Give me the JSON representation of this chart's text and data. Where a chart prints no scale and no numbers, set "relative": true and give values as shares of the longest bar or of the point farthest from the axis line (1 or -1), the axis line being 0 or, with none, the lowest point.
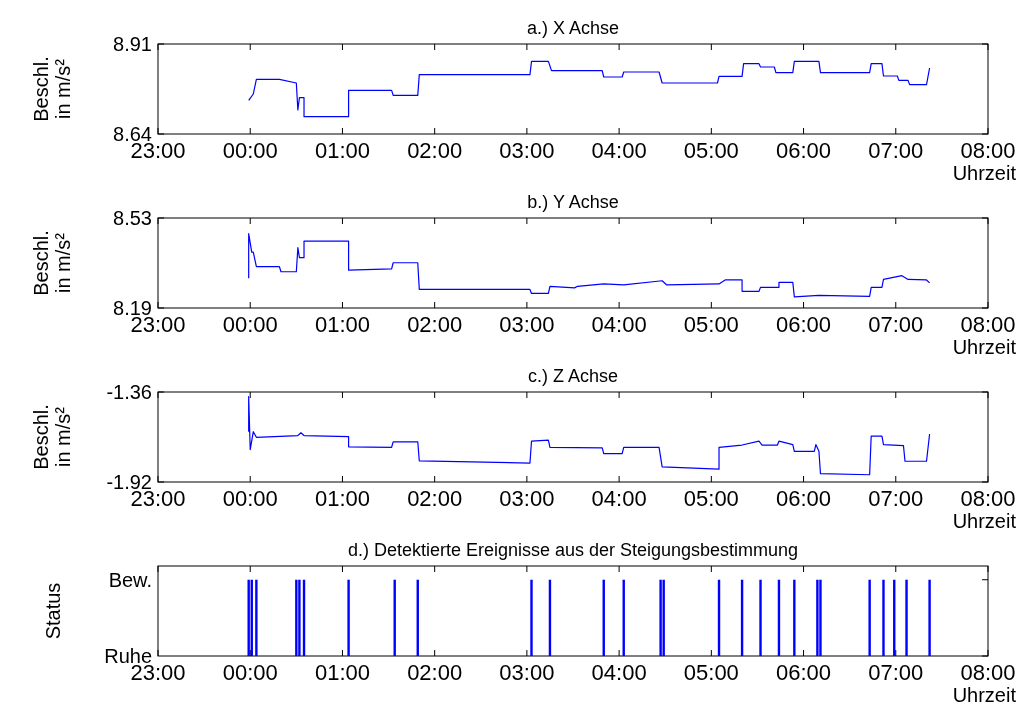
{
  "chart_data": [
    {
      "type": "line",
      "title": "a.) X Achse",
      "xlabel": "Uhrzeit",
      "ylabel": "Beschl. in m/s²",
      "xlim": [
        "2000-01-01T23:00",
        "2000-01-02T08:00"
      ],
      "ylim": [
        8.64,
        8.91
      ],
      "yticks": [
        8.64,
        8.91
      ],
      "xticks": [
        {
          "value": "2000-01-01T23:00",
          "label": "23:00"
        },
        {
          "value": "2000-01-02T00:00",
          "label": "00:00"
        },
        {
          "value": "2000-01-02T01:00",
          "label": "01:00"
        },
        {
          "value": "2000-01-02T02:00",
          "label": "02:00"
        },
        {
          "value": "2000-01-02T03:00",
          "label": "03:00"
        },
        {
          "value": "2000-01-02T04:00",
          "label": "04:00"
        },
        {
          "value": "2000-01-02T05:00",
          "label": "05:00"
        },
        {
          "value": "2000-01-02T06:00",
          "label": "06:00"
        },
        {
          "value": "2000-01-02T07:00",
          "label": "07:00"
        },
        {
          "value": "2000-01-02T08:00",
          "label": "08:00"
        }
      ],
      "series": [
        {
          "color": "#0000ff",
          "x": [
            "2000-01-01T23:59",
            "2000-01-02T00:02",
            "2000-01-02T00:04",
            "2000-01-02T00:19",
            "2000-01-02T00:30",
            "2000-01-02T00:31",
            "2000-01-02T00:32",
            "2000-01-02T00:35",
            "2000-01-02T00:35",
            "2000-01-02T01:04",
            "2000-01-02T01:04",
            "2000-01-02T01:32",
            "2000-01-02T01:33",
            "2000-01-02T01:49",
            "2000-01-02T01:50",
            "2000-01-02T03:02",
            "2000-01-02T03:03",
            "2000-01-02T03:14",
            "2000-01-02T03:16",
            "2000-01-02T03:49",
            "2000-01-02T03:50",
            "2000-01-02T04:02",
            "2000-01-02T04:03",
            "2000-01-02T04:26",
            "2000-01-02T04:28",
            "2000-01-02T05:04",
            "2000-01-02T05:05",
            "2000-01-02T05:20",
            "2000-01-02T05:21",
            "2000-01-02T05:31",
            "2000-01-02T05:32",
            "2000-01-02T05:41",
            "2000-01-02T05:42",
            "2000-01-02T05:53",
            "2000-01-02T05:54",
            "2000-01-02T06:10",
            "2000-01-02T06:11",
            "2000-01-02T06:43",
            "2000-01-02T06:44",
            "2000-01-02T06:51",
            "2000-01-02T06:52",
            "2000-01-02T07:01",
            "2000-01-02T07:02",
            "2000-01-02T07:08",
            "2000-01-02T07:09",
            "2000-01-02T07:20",
            "2000-01-02T07:22"
          ],
          "values": [
            8.741,
            8.76,
            8.804,
            8.804,
            8.793,
            8.712,
            8.749,
            8.749,
            8.692,
            8.692,
            8.771,
            8.771,
            8.756,
            8.756,
            8.818,
            8.818,
            8.858,
            8.858,
            8.83,
            8.83,
            8.811,
            8.811,
            8.826,
            8.826,
            8.793,
            8.793,
            8.813,
            8.813,
            8.851,
            8.851,
            8.841,
            8.841,
            8.824,
            8.824,
            8.858,
            8.858,
            8.824,
            8.824,
            8.851,
            8.851,
            8.814,
            8.814,
            8.801,
            8.801,
            8.788,
            8.788,
            8.838
          ]
        }
      ]
    },
    {
      "type": "line",
      "title": "b.) Y Achse",
      "xlabel": "Uhrzeit",
      "ylabel": "Beschl. in m/s²",
      "xlim": [
        "2000-01-01T23:00",
        "2000-01-02T08:00"
      ],
      "ylim": [
        8.19,
        8.53
      ],
      "yticks": [
        8.19,
        8.53
      ],
      "xticks": [
        {
          "value": "2000-01-01T23:00",
          "label": "23:00"
        },
        {
          "value": "2000-01-02T00:00",
          "label": "00:00"
        },
        {
          "value": "2000-01-02T01:00",
          "label": "01:00"
        },
        {
          "value": "2000-01-02T02:00",
          "label": "02:00"
        },
        {
          "value": "2000-01-02T03:00",
          "label": "03:00"
        },
        {
          "value": "2000-01-02T04:00",
          "label": "04:00"
        },
        {
          "value": "2000-01-02T05:00",
          "label": "05:00"
        },
        {
          "value": "2000-01-02T06:00",
          "label": "06:00"
        },
        {
          "value": "2000-01-02T07:00",
          "label": "07:00"
        },
        {
          "value": "2000-01-02T08:00",
          "label": "08:00"
        }
      ],
      "series": [
        {
          "color": "#0000ff",
          "x": [
            "2000-01-01T23:59",
            "2000-01-01T23:59",
            "2000-01-02T00:01",
            "2000-01-02T00:02",
            "2000-01-02T00:04",
            "2000-01-02T00:19",
            "2000-01-02T00:20",
            "2000-01-02T00:30",
            "2000-01-02T00:31",
            "2000-01-02T00:32",
            "2000-01-02T00:35",
            "2000-01-02T00:35",
            "2000-01-02T01:04",
            "2000-01-02T01:04",
            "2000-01-02T01:32",
            "2000-01-02T01:33",
            "2000-01-02T01:49",
            "2000-01-02T01:50",
            "2000-01-02T03:02",
            "2000-01-02T03:03",
            "2000-01-02T03:14",
            "2000-01-02T03:15",
            "2000-01-02T03:31",
            "2000-01-02T03:33",
            "2000-01-02T03:50",
            "2000-01-02T04:03",
            "2000-01-02T04:28",
            "2000-01-02T04:31",
            "2000-01-02T05:05",
            "2000-01-02T05:09",
            "2000-01-02T05:20",
            "2000-01-02T05:20",
            "2000-01-02T05:31",
            "2000-01-02T05:32",
            "2000-01-02T05:44",
            "2000-01-02T05:44",
            "2000-01-02T05:53",
            "2000-01-02T05:54",
            "2000-01-02T06:10",
            "2000-01-02T06:43",
            "2000-01-02T06:44",
            "2000-01-02T06:51",
            "2000-01-02T06:52",
            "2000-01-02T07:04",
            "2000-01-02T07:08",
            "2000-01-02T07:20",
            "2000-01-02T07:22"
          ],
          "values": [
            8.302,
            8.471,
            8.401,
            8.401,
            8.346,
            8.346,
            8.327,
            8.327,
            8.418,
            8.38,
            8.38,
            8.443,
            8.443,
            8.333,
            8.338,
            8.361,
            8.361,
            8.26,
            8.26,
            8.245,
            8.245,
            8.272,
            8.266,
            8.272,
            8.281,
            8.277,
            8.293,
            8.277,
            8.281,
            8.296,
            8.296,
            8.253,
            8.253,
            8.268,
            8.268,
            8.287,
            8.287,
            8.232,
            8.238,
            8.234,
            8.268,
            8.268,
            8.298,
            8.312,
            8.298,
            8.296,
            8.285
          ]
        }
      ]
    },
    {
      "type": "line",
      "title": "c.) Z Achse",
      "xlabel": "Uhrzeit",
      "ylabel": "Beschl. in m/s²",
      "xlim": [
        "2000-01-01T23:00",
        "2000-01-02T08:00"
      ],
      "ylim": [
        -1.92,
        -1.36
      ],
      "yticks": [
        -1.92,
        -1.36
      ],
      "xticks": [
        {
          "value": "2000-01-01T23:00",
          "label": "23:00"
        },
        {
          "value": "2000-01-02T00:00",
          "label": "00:00"
        },
        {
          "value": "2000-01-02T01:00",
          "label": "01:00"
        },
        {
          "value": "2000-01-02T02:00",
          "label": "02:00"
        },
        {
          "value": "2000-01-02T03:00",
          "label": "03:00"
        },
        {
          "value": "2000-01-02T04:00",
          "label": "04:00"
        },
        {
          "value": "2000-01-02T05:00",
          "label": "05:00"
        },
        {
          "value": "2000-01-02T06:00",
          "label": "06:00"
        },
        {
          "value": "2000-01-02T07:00",
          "label": "07:00"
        },
        {
          "value": "2000-01-02T08:00",
          "label": "08:00"
        }
      ],
      "series": [
        {
          "color": "#0000ff",
          "x": [
            "2000-01-01T23:59",
            "2000-01-01T23:59",
            "2000-01-02T00:00",
            "2000-01-02T00:02",
            "2000-01-02T00:04",
            "2000-01-02T00:31",
            "2000-01-02T00:33",
            "2000-01-02T00:35",
            "2000-01-02T01:04",
            "2000-01-02T01:04",
            "2000-01-02T01:32",
            "2000-01-02T01:33",
            "2000-01-02T01:49",
            "2000-01-02T01:50",
            "2000-01-02T03:02",
            "2000-01-02T03:03",
            "2000-01-02T03:14",
            "2000-01-02T03:15",
            "2000-01-02T03:49",
            "2000-01-02T03:50",
            "2000-01-02T04:02",
            "2000-01-02T04:03",
            "2000-01-02T04:26",
            "2000-01-02T04:28",
            "2000-01-02T05:05",
            "2000-01-02T05:05",
            "2000-01-02T05:20",
            "2000-01-02T05:31",
            "2000-01-02T05:33",
            "2000-01-02T05:43",
            "2000-01-02T05:44",
            "2000-01-02T05:53",
            "2000-01-02T05:54",
            "2000-01-02T06:07",
            "2000-01-02T06:08",
            "2000-01-02T06:10",
            "2000-01-02T06:11",
            "2000-01-02T06:43",
            "2000-01-02T06:44",
            "2000-01-02T06:51",
            "2000-01-02T06:52",
            "2000-01-02T07:05",
            "2000-01-02T07:06",
            "2000-01-02T07:20",
            "2000-01-02T07:22"
          ],
          "values": [
            -1.607,
            -1.388,
            -1.718,
            -1.607,
            -1.642,
            -1.631,
            -1.614,
            -1.631,
            -1.638,
            -1.701,
            -1.704,
            -1.67,
            -1.67,
            -1.788,
            -1.802,
            -1.666,
            -1.659,
            -1.704,
            -1.708,
            -1.743,
            -1.743,
            -1.704,
            -1.704,
            -1.826,
            -1.84,
            -1.704,
            -1.69,
            -1.666,
            -1.69,
            -1.69,
            -1.666,
            -1.687,
            -1.729,
            -1.729,
            -1.687,
            -1.729,
            -1.868,
            -1.875,
            -1.635,
            -1.635,
            -1.687,
            -1.694,
            -1.791,
            -1.791,
            -1.621
          ]
        }
      ]
    },
    {
      "type": "bar",
      "title": "d.) Detektierte Ereignisse aus der Steigungsbestimmung",
      "xlabel": "Uhrzeit",
      "ylabel": "Status",
      "relative": true,
      "annotations": [
        "Ruhe",
        "Bew."
      ],
      "xlim": [
        "2000-01-01T23:00",
        "2000-01-02T08:00"
      ],
      "xticks": [
        {
          "value": "2000-01-01T23:00",
          "label": "23:00"
        },
        {
          "value": "2000-01-02T00:00",
          "label": "00:00"
        },
        {
          "value": "2000-01-02T01:00",
          "label": "01:00"
        },
        {
          "value": "2000-01-02T02:00",
          "label": "02:00"
        },
        {
          "value": "2000-01-02T03:00",
          "label": "03:00"
        },
        {
          "value": "2000-01-02T04:00",
          "label": "04:00"
        },
        {
          "value": "2000-01-02T05:00",
          "label": "05:00"
        },
        {
          "value": "2000-01-02T06:00",
          "label": "06:00"
        },
        {
          "value": "2000-01-02T07:00",
          "label": "07:00"
        },
        {
          "value": "2000-01-02T08:00",
          "label": "08:00"
        }
      ],
      "series": [
        {
          "color": "#0000ff",
          "x": [
            "2000-01-01T23:59",
            "2000-01-02T00:01",
            "2000-01-02T00:04",
            "2000-01-02T00:30",
            "2000-01-02T00:32",
            "2000-01-02T00:35",
            "2000-01-02T01:04",
            "2000-01-02T01:34",
            "2000-01-02T01:49",
            "2000-01-02T03:03",
            "2000-01-02T03:15",
            "2000-01-02T03:50",
            "2000-01-02T04:03",
            "2000-01-02T04:27",
            "2000-01-02T04:29",
            "2000-01-02T05:05",
            "2000-01-02T05:20",
            "2000-01-02T05:32",
            "2000-01-02T05:44",
            "2000-01-02T05:54",
            "2000-01-02T06:09",
            "2000-01-02T06:11",
            "2000-01-02T06:43",
            "2000-01-02T06:52",
            "2000-01-02T06:59",
            "2000-01-02T07:07",
            "2000-01-02T07:22"
          ],
          "values": [
            1,
            1,
            1,
            1,
            1,
            1,
            1,
            1,
            1,
            1,
            1,
            1,
            1,
            1,
            1,
            1,
            1,
            1,
            1,
            1,
            1,
            1,
            1,
            1,
            1,
            1,
            1
          ]
        }
      ]
    }
  ]
}
